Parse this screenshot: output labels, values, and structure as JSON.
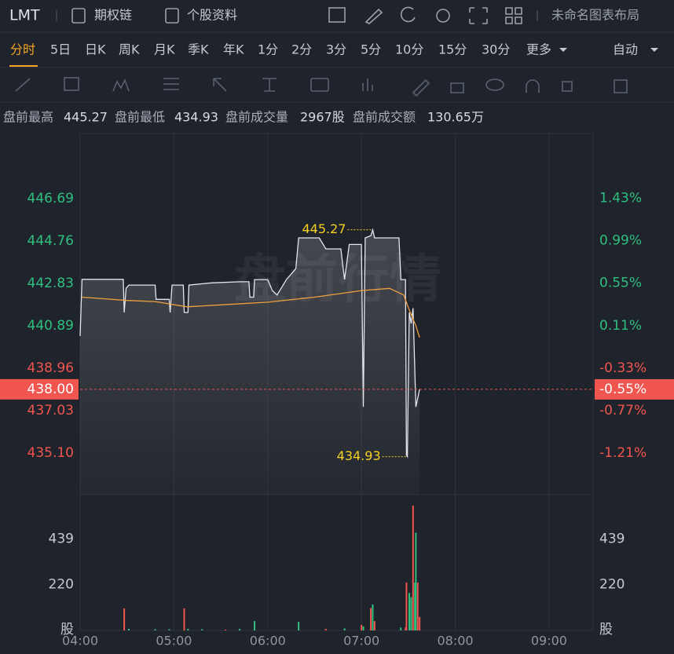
{
  "header": {
    "symbol": "LMT",
    "tabs": [
      "期权链",
      "个股资料"
    ],
    "layout_name": "未命名图表布局"
  },
  "timeframes": {
    "items": [
      "分时",
      "5日",
      "日K",
      "周K",
      "月K",
      "季K",
      "年K",
      "1分",
      "2分",
      "3分",
      "5分",
      "10分",
      "15分",
      "30分",
      "更多"
    ],
    "scale_mode": "自动"
  },
  "info": {
    "items": [
      {
        "label": "盘前最高",
        "value": "445.27"
      },
      {
        "label": "盘前最低",
        "value": "434.93"
      },
      {
        "label": "盘前成交量",
        "value": "2967股"
      },
      {
        "label": "盘前成交额",
        "value": "130.65万"
      }
    ]
  },
  "chart_data": [
    {
      "type": "line",
      "watermark": "盘前行情",
      "xlim": [
        4,
        9.47
      ],
      "ylim": [
        433.2,
        449.66
      ],
      "yticks": [
        446.69,
        444.76,
        442.83,
        440.89,
        438.96,
        437.03,
        {
          "value": 435.1,
          "label": "435.10"
        }
      ],
      "y2lim": [
        -1.64,
        2.1
      ],
      "y2ticks": [
        {
          "value": 1.43,
          "label": "1.43%"
        },
        {
          "value": 0.99,
          "label": "0.99%"
        },
        {
          "value": 0.55,
          "label": "0.55%"
        },
        {
          "value": 0.11,
          "label": "0.11%"
        },
        {
          "value": -0.33,
          "label": "-0.33%"
        },
        {
          "value": -0.77,
          "label": "-0.77%"
        },
        {
          "value": -1.21,
          "label": "-1.21%"
        }
      ],
      "up_color": "#2fbf7f",
      "down_color": "#f0554f",
      "series": [
        {
          "color": "#e3e6ec",
          "area": true,
          "x": [
            4.0,
            4.02,
            4.46,
            4.47,
            4.49,
            4.52,
            4.8,
            4.81,
            4.95,
            4.96,
            4.98,
            5.1,
            5.11,
            5.15,
            5.16,
            5.4,
            5.7,
            5.8,
            5.81,
            5.85,
            5.86,
            6.0,
            6.05,
            6.1,
            6.2,
            6.3,
            6.33,
            6.55,
            6.62,
            6.78,
            6.82,
            6.87,
            7.0,
            7.02,
            7.04,
            7.1,
            7.12,
            7.14,
            7.4,
            7.42,
            7.47,
            7.48,
            7.49,
            7.51,
            7.53,
            7.55,
            7.58,
            7.62
          ],
          "values": [
            440.43,
            443.01,
            443.01,
            441.5,
            442.6,
            442.75,
            442.75,
            442.1,
            442.1,
            441.5,
            442.75,
            442.75,
            441.5,
            441.5,
            442.75,
            442.85,
            442.9,
            442.9,
            442.2,
            442.2,
            443.0,
            443.0,
            442.5,
            442.3,
            443.0,
            443.5,
            444.9,
            444.9,
            444.4,
            444.4,
            443.0,
            444.6,
            444.6,
            437.2,
            444.9,
            445.0,
            445.27,
            444.9,
            444.9,
            443.0,
            443.0,
            435.0,
            434.93,
            441.5,
            441.0,
            441.7,
            437.2,
            438.0
          ]
        },
        {
          "color": "#f0a040",
          "area": false,
          "x": [
            4.02,
            4.5,
            4.8,
            5.14,
            5.5,
            6.0,
            6.5,
            7.0,
            7.3,
            7.45,
            7.52,
            7.58,
            7.62
          ],
          "values": [
            442.2,
            442.05,
            442.0,
            441.76,
            441.85,
            441.97,
            442.2,
            442.5,
            442.6,
            442.3,
            441.5,
            440.9,
            440.36
          ]
        }
      ],
      "annotations": [
        {
          "label": "445.27",
          "x": 7.12,
          "value": 445.27
        },
        {
          "label": "434.93",
          "x": 7.49,
          "value": 434.93
        }
      ],
      "last_price": {
        "value": 438,
        "label": "438.00"
      },
      "last_change": {
        "value": -0.55,
        "label": "-0.55%"
      }
    },
    {
      "type": "bar",
      "y_unit": "股",
      "xlim": [
        4,
        9.47
      ],
      "xticks": [
        {
          "value": 4,
          "label": "04:00"
        },
        {
          "value": 5,
          "label": "05:00"
        },
        {
          "value": 6,
          "label": "06:00"
        },
        {
          "value": 7,
          "label": "07:00"
        },
        {
          "value": 8,
          "label": "08:00"
        },
        {
          "value": 9,
          "label": "09:00"
        }
      ],
      "grid": true,
      "ylim": [
        0,
        653
      ],
      "yticks": [
        220,
        439
      ],
      "series": [
        {
          "color": "#f0554f",
          "x": [
            4.47,
            5.11,
            5.55,
            6.62,
            7.0,
            7.1,
            7.14,
            7.47,
            7.48,
            7.55,
            7.6,
            7.62
          ],
          "values": [
            106,
            106,
            4,
            8,
            27,
            108,
            45,
            15,
            230,
            600,
            230,
            65
          ]
        },
        {
          "color": "#2fbf7f",
          "x": [
            4.52,
            4.8,
            4.95,
            5.15,
            5.3,
            5.7,
            5.86,
            6.33,
            6.82,
            7.02,
            7.12,
            7.42,
            7.51,
            7.53,
            7.57,
            7.58
          ],
          "values": [
            8,
            6,
            6,
            8,
            6,
            8,
            45,
            42,
            10,
            20,
            125,
            14,
            180,
            160,
            230,
            470
          ]
        }
      ]
    }
  ]
}
